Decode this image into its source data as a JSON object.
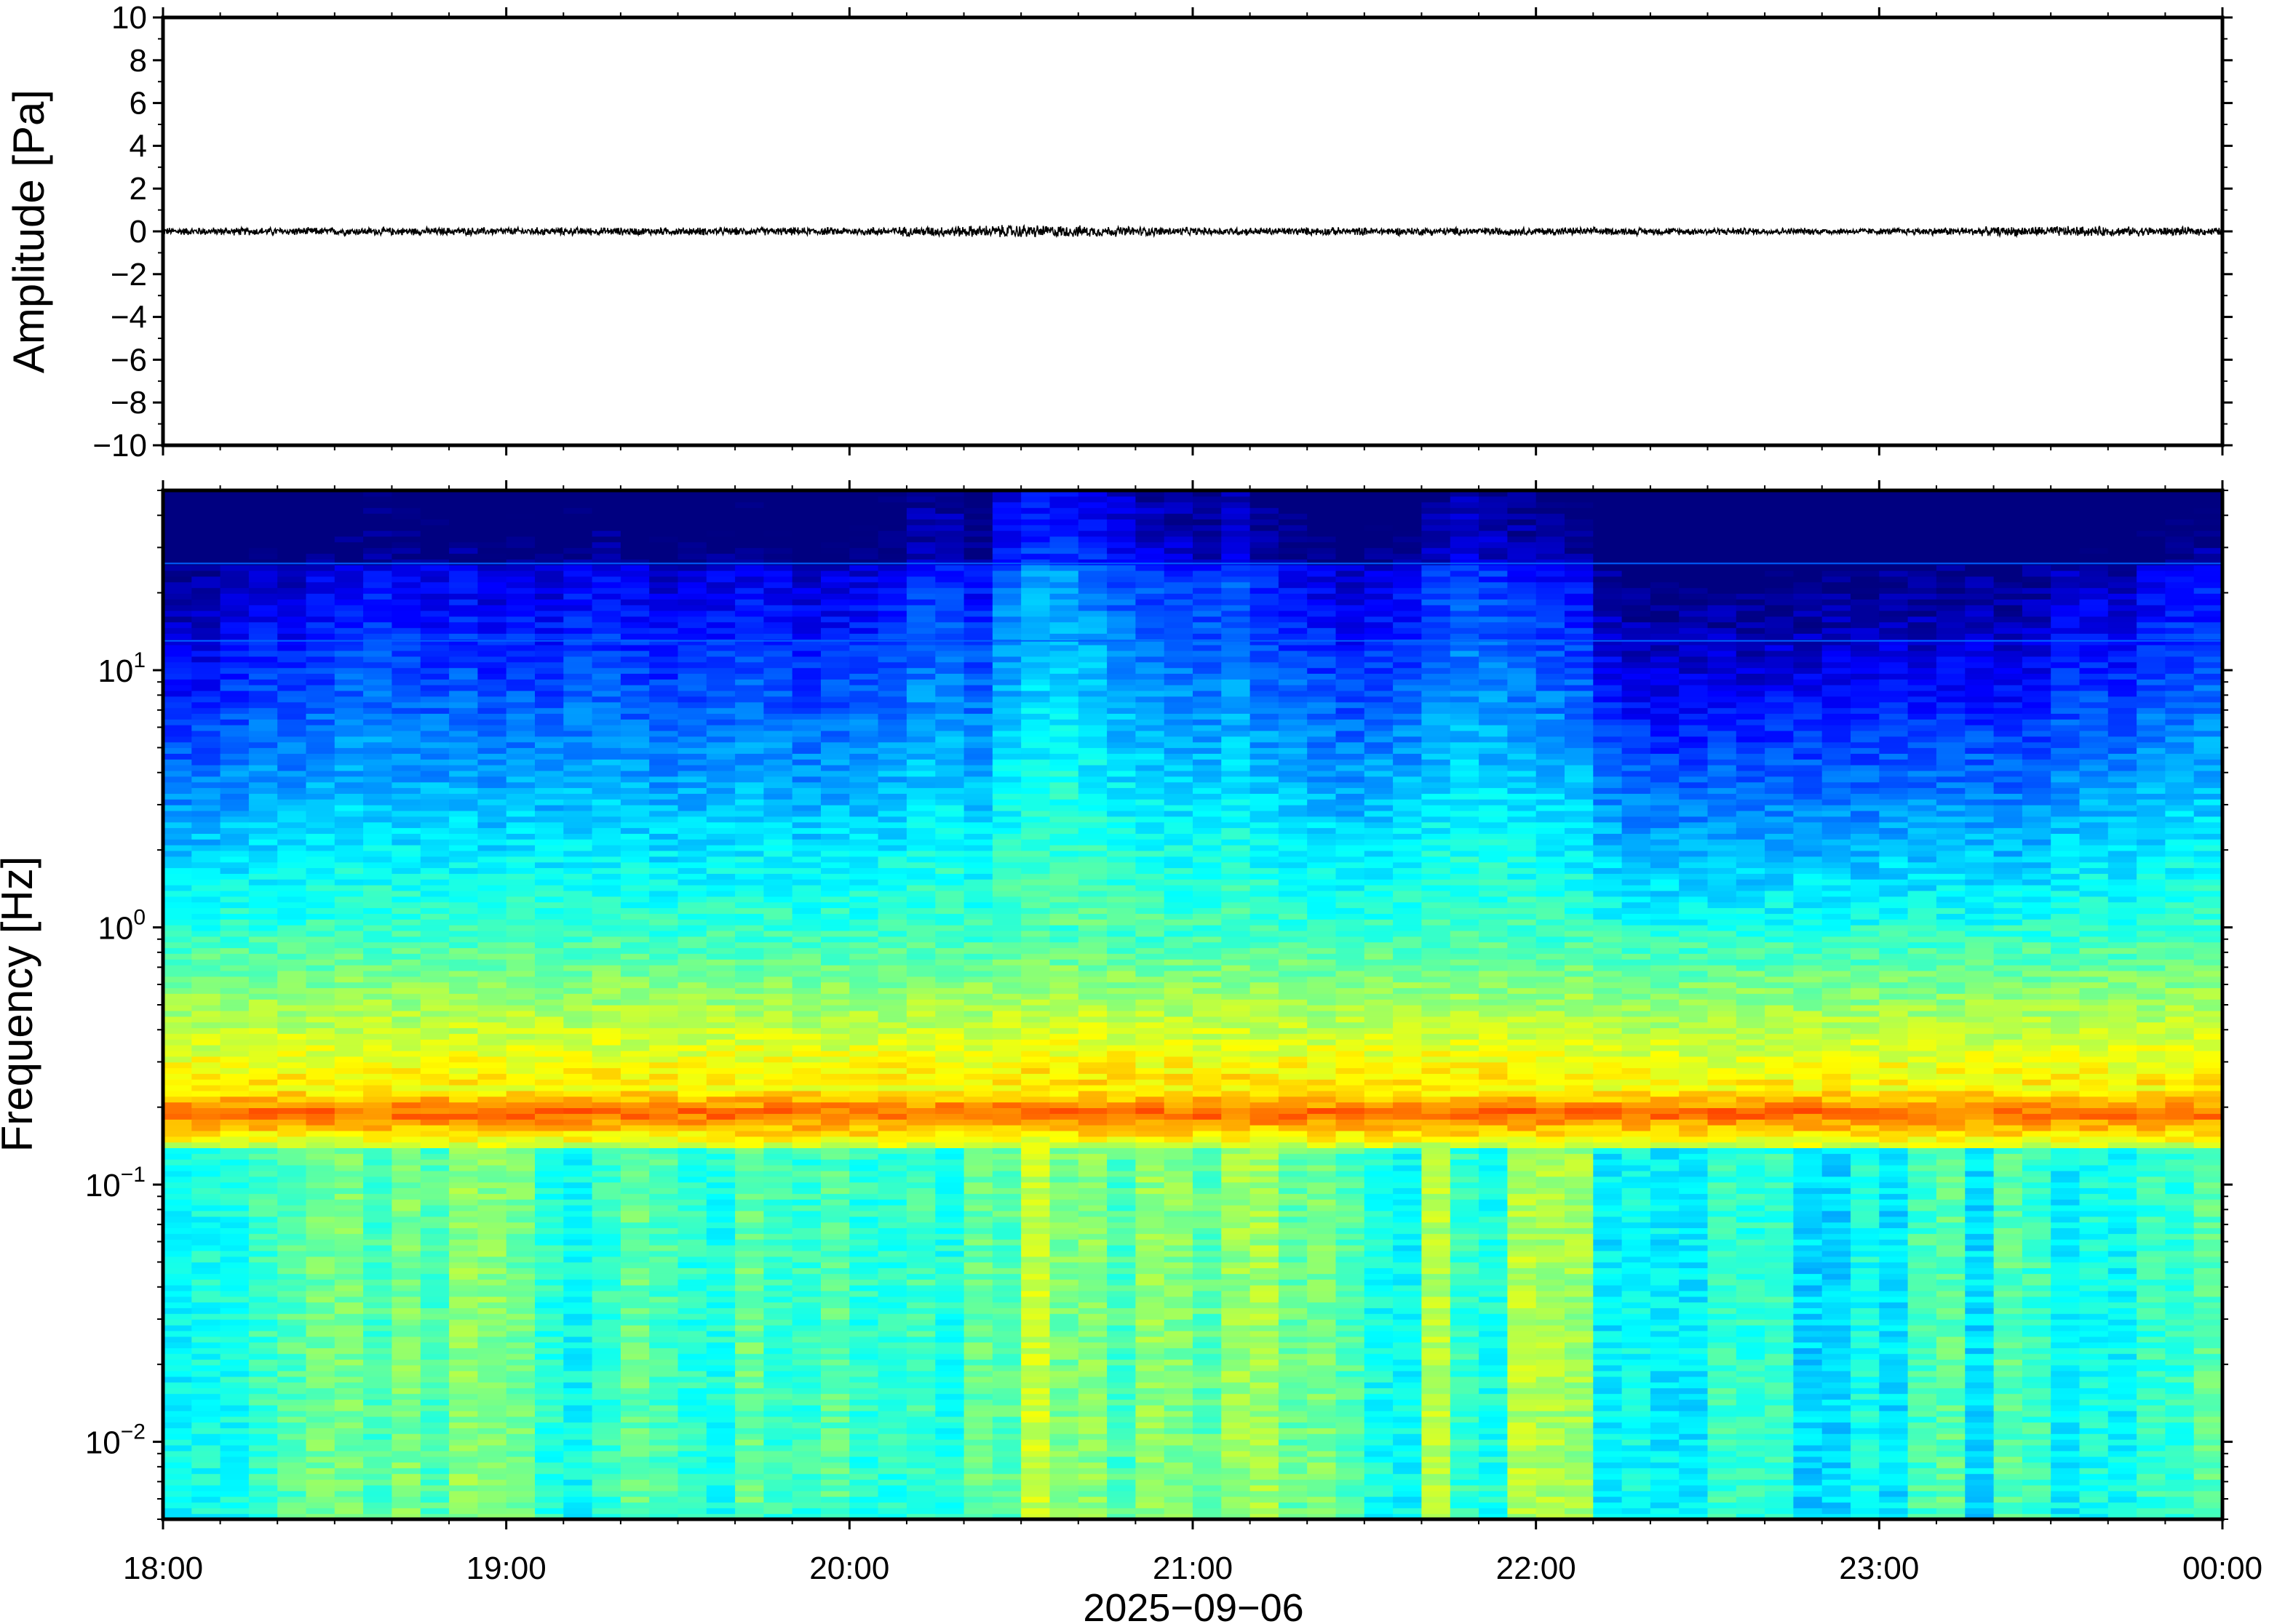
{
  "chart_data": [
    {
      "type": "line",
      "ylabel": "Amplitude [Pa]",
      "ylim": [
        -10,
        10
      ],
      "yticks": [
        10,
        8,
        6,
        4,
        2,
        0,
        -2,
        -4,
        -6,
        -8,
        -10
      ],
      "ytick_labels": [
        "10",
        "8",
        "6",
        "4",
        "2",
        "0",
        "−2",
        "−4",
        "−6",
        "−8",
        "−10"
      ],
      "xlim": [
        "18:00",
        "00:00"
      ],
      "series": [
        {
          "x": [
            "18:00",
            "19:00",
            "20:00",
            "20:30",
            "21:00",
            "22:00",
            "23:00",
            "23:30",
            "00:00"
          ],
          "y": [
            0,
            0,
            0,
            0,
            0,
            0,
            0,
            0,
            0
          ],
          "envelope_pa": [
            0.15,
            0.15,
            0.15,
            0.25,
            0.15,
            0.15,
            0.12,
            0.2,
            0.15
          ]
        }
      ],
      "grid": false
    },
    {
      "type": "heatmap",
      "ylabel": "Frequency [Hz]",
      "xlabel": "2025−09−06",
      "yscale": "log",
      "ylim": [
        0.005,
        50
      ],
      "yticks": [
        {
          "base": "10",
          "exp": "1",
          "value": 10
        },
        {
          "base": "10",
          "exp": "0",
          "value": 1
        },
        {
          "base": "10",
          "exp": "−1",
          "value": 0.1
        },
        {
          "base": "10",
          "exp": "−2",
          "value": 0.01
        }
      ],
      "xticks": [
        "18:00",
        "19:00",
        "20:00",
        "21:00",
        "22:00",
        "23:00",
        "00:00"
      ],
      "colormap": "jet",
      "dominant_band_hz": 0.19,
      "column_step_minutes": 5,
      "high_freq_lines_hz": [
        26,
        13
      ],
      "activity_by_column": [
        0.35,
        0.38,
        0.45,
        0.5,
        0.48,
        0.55,
        0.6,
        0.62,
        0.58,
        0.55,
        0.58,
        0.5,
        0.55,
        0.52,
        0.58,
        0.6,
        0.55,
        0.5,
        0.52,
        0.55,
        0.58,
        0.55,
        0.5,
        0.52,
        0.55,
        0.6,
        0.7,
        0.72,
        0.6,
        0.85,
        0.95,
        0.95,
        0.9,
        0.8,
        0.75,
        0.72,
        0.7,
        0.78,
        0.65,
        0.6,
        0.55,
        0.5,
        0.55,
        0.58,
        0.7,
        0.75,
        0.72,
        0.68,
        0.65,
        0.6,
        0.35,
        0.28,
        0.25,
        0.25,
        0.28,
        0.25,
        0.3,
        0.28,
        0.3,
        0.3,
        0.35,
        0.32,
        0.35,
        0.35,
        0.3,
        0.35,
        0.45,
        0.5,
        0.45,
        0.55,
        0.6,
        0.62
      ]
    }
  ]
}
